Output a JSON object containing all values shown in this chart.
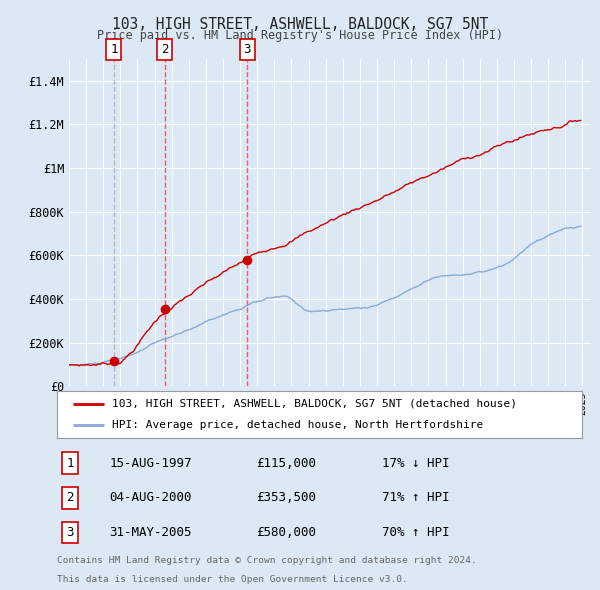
{
  "title": "103, HIGH STREET, ASHWELL, BALDOCK, SG7 5NT",
  "subtitle": "Price paid vs. HM Land Registry's House Price Index (HPI)",
  "background_color": "#dce9f5",
  "plot_bg_color": "#dce9f5",
  "grid_color": "#ffffff",
  "sale_years": [
    1997.62,
    2000.59,
    2005.41
  ],
  "sale_prices": [
    115000,
    353500,
    580000
  ],
  "sale_labels": [
    "1",
    "2",
    "3"
  ],
  "sale_line_colors": [
    "#aaaacc",
    "#ee4444",
    "#ee4444"
  ],
  "sale_info": [
    {
      "label": "1",
      "date": "15-AUG-1997",
      "price": "£115,000",
      "hpi": "17% ↓ HPI"
    },
    {
      "label": "2",
      "date": "04-AUG-2000",
      "price": "£353,500",
      "hpi": "71% ↑ HPI"
    },
    {
      "label": "3",
      "date": "31-MAY-2005",
      "price": "£580,000",
      "hpi": "70% ↑ HPI"
    }
  ],
  "legend_property_label": "103, HIGH STREET, ASHWELL, BALDOCK, SG7 5NT (detached house)",
  "legend_hpi_label": "HPI: Average price, detached house, North Hertfordshire",
  "footer_line1": "Contains HM Land Registry data © Crown copyright and database right 2024.",
  "footer_line2": "This data is licensed under the Open Government Licence v3.0.",
  "ylim": [
    0,
    1500000
  ],
  "yticks": [
    0,
    200000,
    400000,
    600000,
    800000,
    1000000,
    1200000,
    1400000
  ],
  "ytick_labels": [
    "£0",
    "£200K",
    "£400K",
    "£600K",
    "£800K",
    "£1M",
    "£1.2M",
    "£1.4M"
  ],
  "xlim": [
    1995.0,
    2025.5
  ],
  "property_color": "#cc0000",
  "hpi_color": "#88aad4",
  "dashed_line_color_red": "#ee4444",
  "dashed_line_color_blue": "#aaaacc",
  "marker_color": "#cc0000",
  "marker_size": 7,
  "box_edge_color": "#cc0000",
  "bottom_bg": "#ffffff"
}
